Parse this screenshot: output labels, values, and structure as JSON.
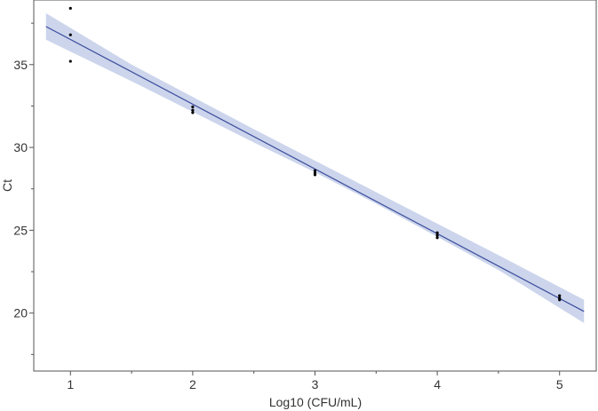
{
  "chart_data": {
    "type": "scatter",
    "title": "",
    "xlabel": "Log10 (CFU/mL)",
    "ylabel": "Ct",
    "xlim": [
      0.7,
      5.3
    ],
    "ylim": [
      16.5,
      38.9
    ],
    "x_ticks": [
      1,
      2,
      3,
      4,
      5
    ],
    "x_tick_labels": [
      "1",
      "2",
      "3",
      "4",
      "5"
    ],
    "y_ticks": [
      20,
      25,
      30,
      35
    ],
    "y_tick_labels": [
      "20",
      "25",
      "30",
      "35"
    ],
    "grid": false,
    "legend": "none",
    "series": [
      {
        "kind": "points",
        "points": [
          {
            "x": 1,
            "y": 38.4
          },
          {
            "x": 1,
            "y": 36.8
          },
          {
            "x": 1,
            "y": 35.2
          },
          {
            "x": 2,
            "y": 32.45
          },
          {
            "x": 2,
            "y": 32.25
          },
          {
            "x": 2,
            "y": 32.1
          },
          {
            "x": 3,
            "y": 28.6
          },
          {
            "x": 3,
            "y": 28.45
          },
          {
            "x": 3,
            "y": 28.35
          },
          {
            "x": 4,
            "y": 24.85
          },
          {
            "x": 4,
            "y": 24.7
          },
          {
            "x": 4,
            "y": 24.55
          },
          {
            "x": 5,
            "y": 21.05
          },
          {
            "x": 5,
            "y": 20.9
          },
          {
            "x": 5,
            "y": 20.8
          }
        ]
      },
      {
        "kind": "fit",
        "line": [
          {
            "x": 0.8,
            "y": 37.3
          },
          {
            "x": 5.2,
            "y": 20.1
          }
        ],
        "band_upper": [
          {
            "x": 0.8,
            "y": 38.1
          },
          {
            "x": 1.5,
            "y": 35.0
          },
          {
            "x": 2.5,
            "y": 31.1
          },
          {
            "x": 3.0,
            "y": 29.2
          },
          {
            "x": 3.5,
            "y": 27.3
          },
          {
            "x": 4.5,
            "y": 23.5
          },
          {
            "x": 5.2,
            "y": 20.8
          }
        ],
        "band_lower": [
          {
            "x": 0.8,
            "y": 36.5
          },
          {
            "x": 1.5,
            "y": 34.0
          },
          {
            "x": 2.5,
            "y": 30.3
          },
          {
            "x": 3.0,
            "y": 28.5
          },
          {
            "x": 3.5,
            "y": 26.6
          },
          {
            "x": 4.5,
            "y": 22.6
          },
          {
            "x": 5.2,
            "y": 19.4
          }
        ]
      }
    ],
    "colors": {
      "point": "#000000",
      "fit_line": "#3b4c9b",
      "band": "#c6d0ea",
      "axis": "#555555"
    }
  }
}
